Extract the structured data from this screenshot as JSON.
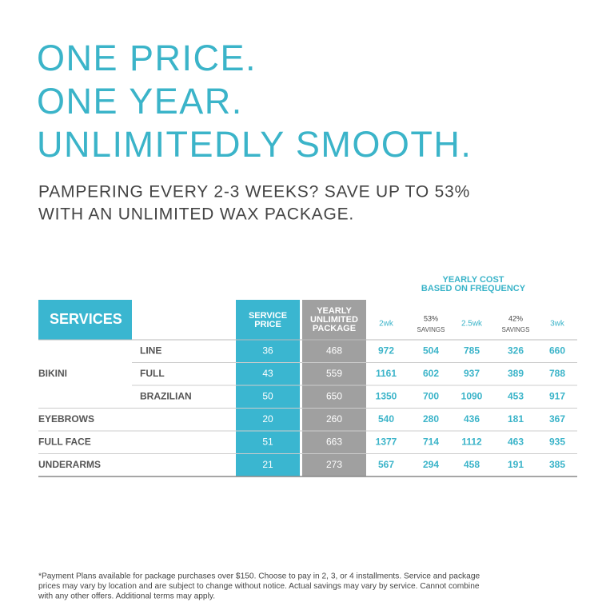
{
  "headline": [
    "ONE PRICE.",
    "ONE YEAR.",
    "UNLIMITEDLY SMOOTH."
  ],
  "subheadline": [
    "PAMPERING EVERY 2-3 WEEKS? SAVE UP TO 53%",
    "WITH AN UNLIMITED WAX PACKAGE."
  ],
  "table": {
    "frequency_title": [
      "YEARLY COST",
      "BASED ON FREQUENCY"
    ],
    "services_header": "SERVICES",
    "price_header": [
      "SERVICE",
      "PRICE"
    ],
    "unlimited_header": [
      "YEARLY",
      "UNLIMITED",
      "PACKAGE"
    ],
    "frequency_headers": [
      {
        "label": "2wk"
      },
      {
        "label": "53%",
        "sub": "SAVINGS"
      },
      {
        "label": "2.5wk"
      },
      {
        "label": "42%",
        "sub": "SAVINGS"
      },
      {
        "label": "3wk"
      }
    ],
    "groups": [
      {
        "name": "BIKINI",
        "rows": [
          {
            "name": "LINE",
            "values": [
              36,
              468,
              972,
              504,
              785,
              326,
              660
            ]
          },
          {
            "name": "FULL",
            "values": [
              43,
              559,
              1161,
              602,
              937,
              389,
              788
            ]
          },
          {
            "name": "BRAZILIAN",
            "values": [
              50,
              650,
              1350,
              700,
              1090,
              453,
              917
            ]
          }
        ]
      },
      {
        "name": "EYEBROWS",
        "rows": [
          {
            "values": [
              20,
              260,
              540,
              280,
              436,
              181,
              367
            ]
          }
        ]
      },
      {
        "name": "FULL FACE",
        "rows": [
          {
            "values": [
              51,
              663,
              1377,
              714,
              1112,
              463,
              935
            ]
          }
        ]
      },
      {
        "name": "UNDERARMS",
        "rows": [
          {
            "values": [
              21,
              273,
              567,
              294,
              458,
              191,
              385
            ]
          }
        ]
      }
    ]
  },
  "footnote": [
    "*Payment Plans available for package purchases over $150. Choose to pay in 2, 3, or 4 installments. Service and package",
    "prices may vary by location and are subject to change without notice. Actual savings may vary by service. Cannot combine",
    "with any other offers. Additional terms may apply."
  ]
}
